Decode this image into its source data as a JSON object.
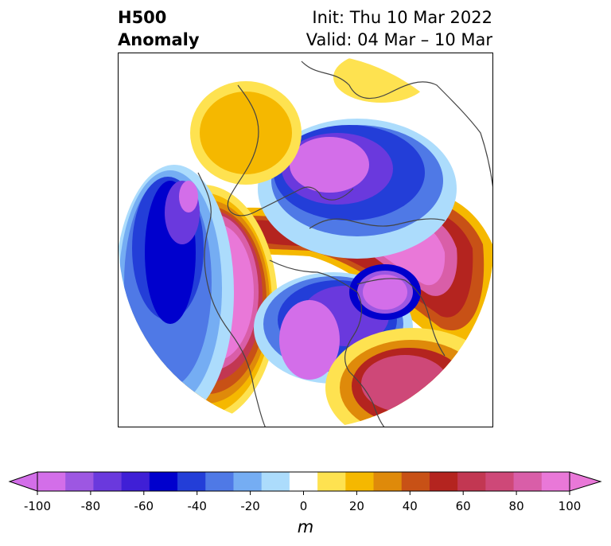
{
  "header": {
    "title_line1": "H500",
    "title_line2": "Anomaly",
    "init": "Init: Thu 10 Mar 2022",
    "valid": "Valid: 04 Mar – 10 Mar"
  },
  "colorbar": {
    "unit": "m",
    "ticks": [
      "-100",
      "-80",
      "-60",
      "-40",
      "-20",
      "0",
      "20",
      "40",
      "60",
      "80",
      "100"
    ],
    "levels": [
      -100,
      -90,
      -80,
      -70,
      -60,
      -50,
      -40,
      -30,
      -20,
      -10,
      10,
      20,
      30,
      40,
      50,
      60,
      70,
      80,
      90,
      100
    ],
    "colors": [
      "#d36ee9",
      "#9d57e2",
      "#6a39dd",
      "#3f1fd6",
      "#0000cd",
      "#233ed8",
      "#4f79e6",
      "#75adf3",
      "#acdcfc",
      "#ffffff",
      "#fee250",
      "#f5b800",
      "#df8a0a",
      "#c85116",
      "#b4241f",
      "#c23752",
      "#ce4878",
      "#d95ea8",
      "#e978d8"
    ],
    "extend_low_color": "#d36ee9",
    "extend_high_color": "#e978d8"
  },
  "map": {
    "projection": "polar stereographic (Northern Hemisphere)",
    "coastline_color": "#444444"
  }
}
